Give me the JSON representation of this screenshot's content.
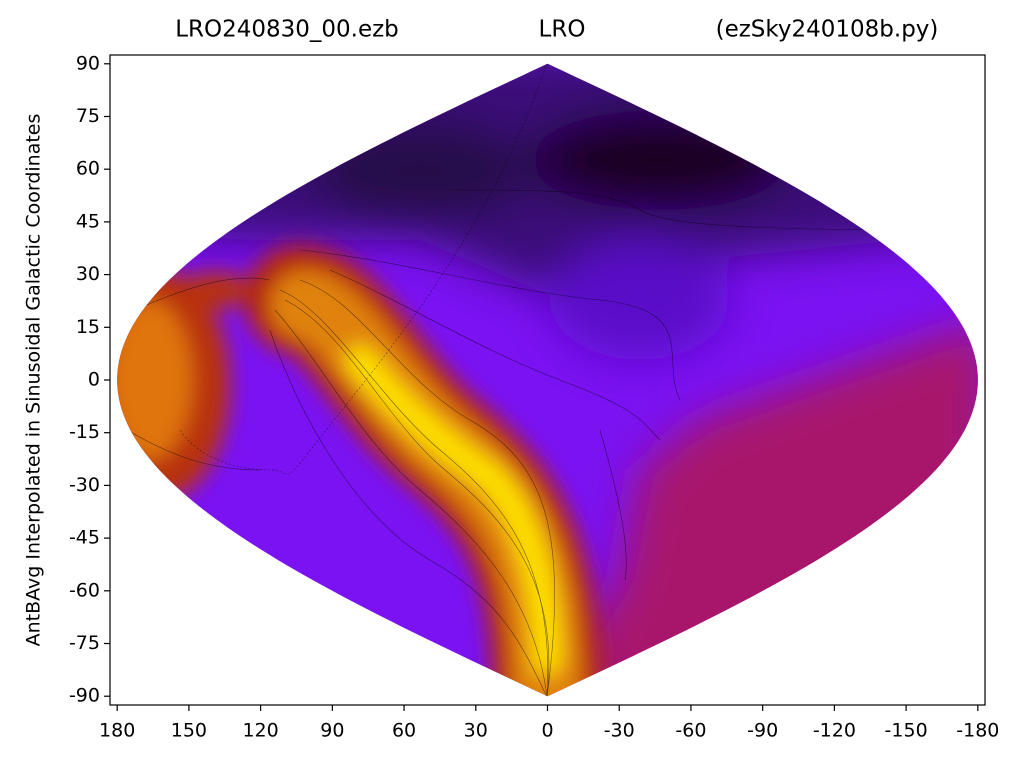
{
  "chart_data": {
    "type": "heatmap",
    "titles": [
      "LRO240830_00.ezb",
      "LRO",
      "(ezSky240108b.py)"
    ],
    "ylabel": "AntBAvg Interpolated in Sinusoidal Galactic Coordinates",
    "xlim": [
      183,
      -183
    ],
    "ylim": [
      -92.5,
      92.5
    ],
    "xticks": [
      180,
      150,
      120,
      90,
      60,
      30,
      0,
      -30,
      -60,
      -90,
      -120,
      -150,
      -180
    ],
    "yticks": [
      90,
      75,
      60,
      45,
      30,
      15,
      0,
      -15,
      -30,
      -45,
      -60,
      -75,
      -90
    ]
  }
}
